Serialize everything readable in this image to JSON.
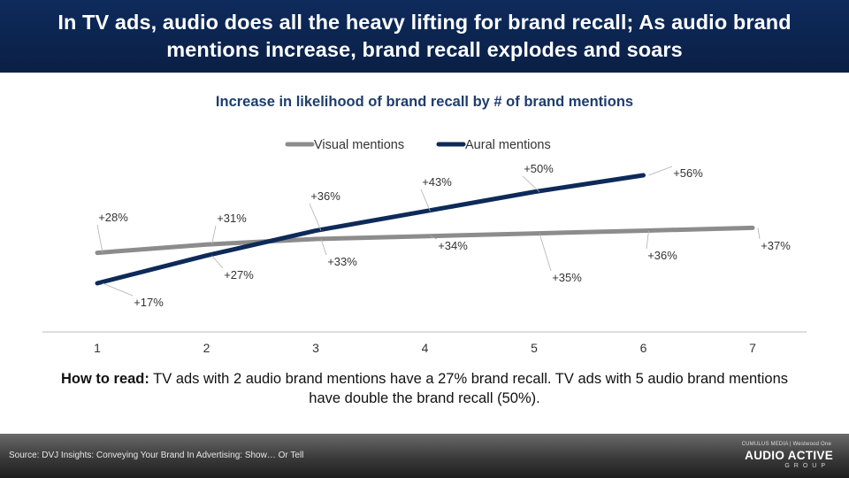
{
  "header": {
    "title": "In TV ads, audio does all the heavy lifting for brand recall; As audio brand mentions increase, brand recall explodes and soars"
  },
  "footer": {
    "source": "Source: DVJ Insights: Conveying Your Brand In Advertising: Show… Or Tell",
    "logo_top": "CUMULUS MEDIA | Westwood One",
    "logo_main": "AUDIO ACTIVE",
    "logo_sub": "GROUP"
  },
  "note": {
    "bold": "How to read:",
    "text": " TV ads with 2 audio brand mentions have a 27% brand recall. TV ads with 5 audio brand mentions have double the brand recall (50%)."
  },
  "colors": {
    "visual": "#8c8c8c",
    "aural": "#0d2a59",
    "header": "#0e2b5c"
  },
  "chart_data": {
    "type": "line",
    "title": "Increase in likelihood of brand recall by # of brand mentions",
    "x": [
      1,
      2,
      3,
      4,
      5,
      6,
      7
    ],
    "xlabel": "",
    "ylabel": "",
    "legend_position": "top-center",
    "grid": false,
    "series": [
      {
        "name": "Visual mentions",
        "x": [
          1,
          2,
          3,
          4,
          5,
          6,
          7
        ],
        "values": [
          28,
          31,
          33,
          34,
          35,
          36,
          37
        ],
        "labels": [
          "+28%",
          "+31%",
          "+33%",
          "+34%",
          "+35%",
          "+36%",
          "+37%"
        ]
      },
      {
        "name": "Aural mentions",
        "x": [
          1,
          2,
          3,
          4,
          5,
          6
        ],
        "values": [
          17,
          27,
          36,
          43,
          50,
          56
        ],
        "labels": [
          "+17%",
          "+27%",
          "+36%",
          "+43%",
          "+50%",
          "+56%"
        ]
      }
    ]
  }
}
